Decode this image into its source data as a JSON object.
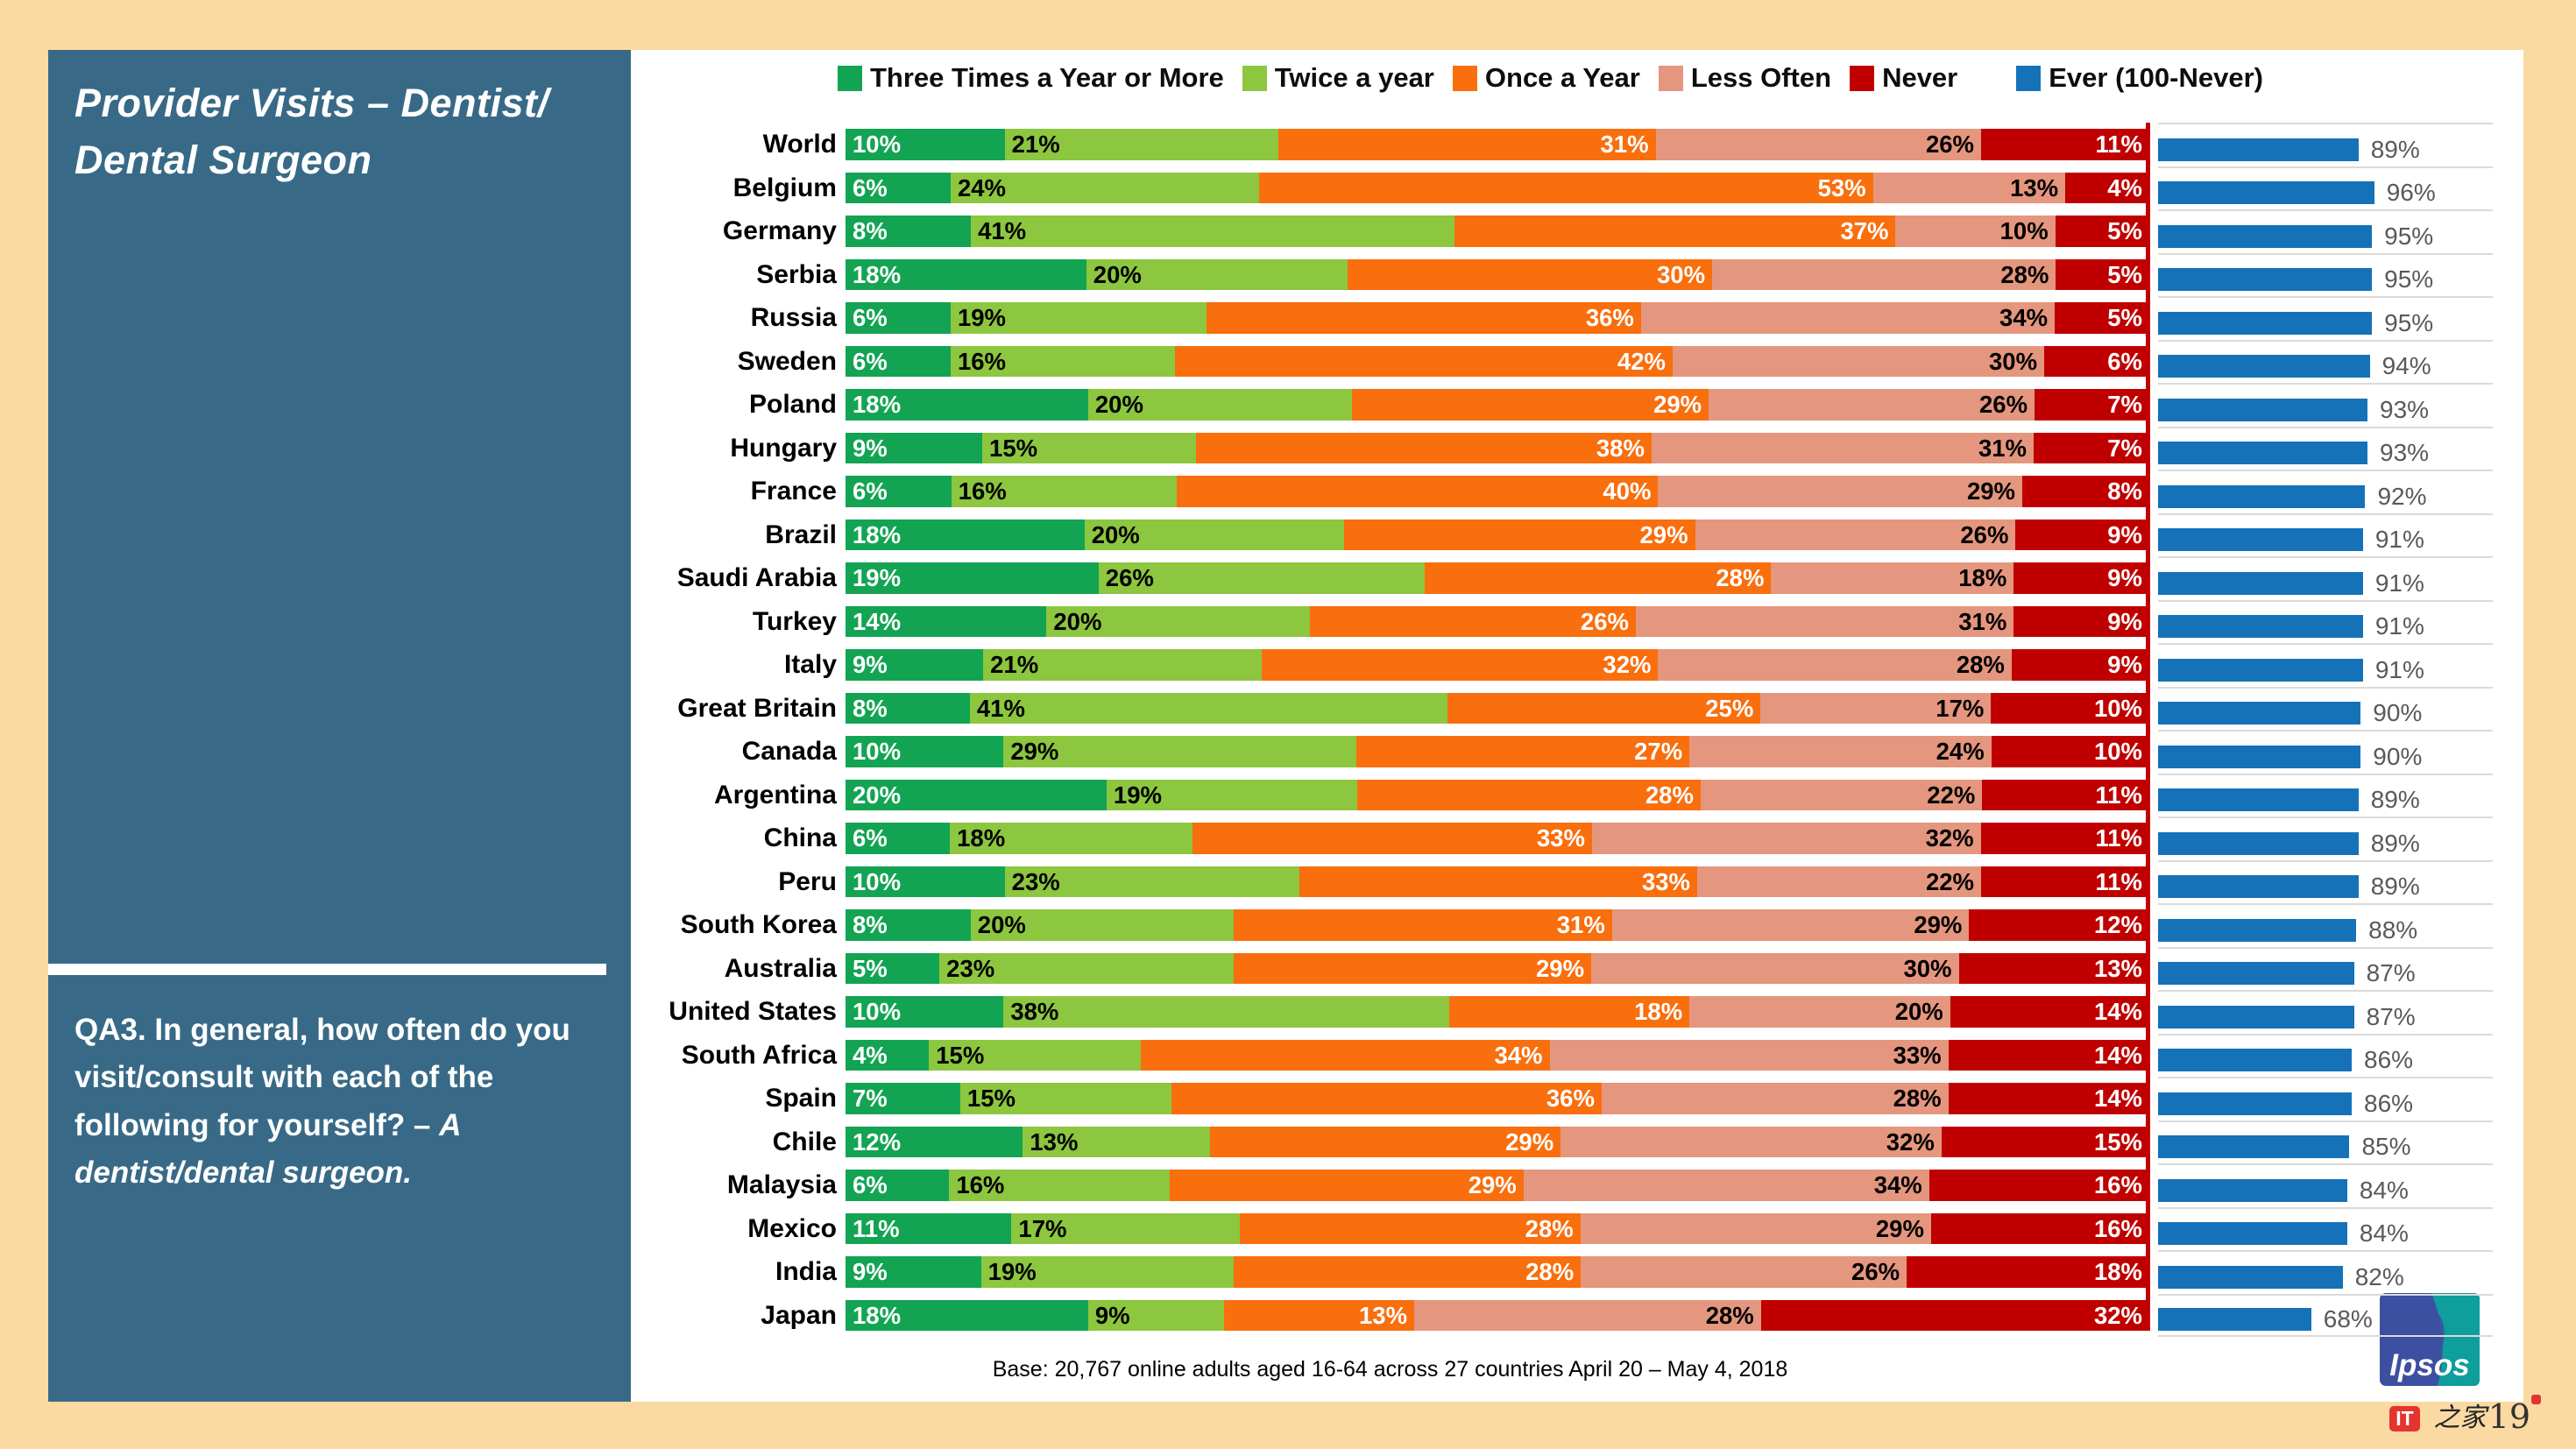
{
  "sidebar": {
    "title_line1": "Provider Visits – Dentist/",
    "title_line2": "Dental Surgeon",
    "question_prefix": "QA3. In general, how often do you visit/consult with each of the following for yourself? – ",
    "question_italic": "A dentist/dental surgeon."
  },
  "legend": {
    "position": "top",
    "items": [
      {
        "label": "Three Times a Year or More",
        "color": "#12A452"
      },
      {
        "label": "Twice a year",
        "color": "#8DC63F"
      },
      {
        "label": "Once a Year",
        "color": "#F96E0D"
      },
      {
        "label": "Less Often",
        "color": "#E5967E"
      },
      {
        "label": "Never",
        "color": "#C00000"
      },
      {
        "label": "Ever (100-Never)",
        "color": "#1572B8"
      }
    ]
  },
  "chart_data": {
    "type": "bar",
    "variant": "horizontal stacked 100% + companion horizontal bar (Ever)",
    "unit": "%",
    "series": [
      "Three Times a Year or More",
      "Twice a year",
      "Once a Year",
      "Less Often",
      "Never"
    ],
    "series_colors": [
      "#12A452",
      "#8DC63F",
      "#F96E0D",
      "#E5967E",
      "#C00000"
    ],
    "ever_series": {
      "name": "Ever (100-Never)",
      "color": "#1572B8",
      "max": 100
    },
    "grid": "row separator lines on Ever chart only",
    "rows": [
      {
        "country": "World",
        "values": [
          10,
          21,
          31,
          26,
          11
        ],
        "ever": 89
      },
      {
        "country": "Belgium",
        "values": [
          6,
          24,
          53,
          13,
          4
        ],
        "ever": 96
      },
      {
        "country": "Germany",
        "values": [
          8,
          41,
          37,
          10,
          5
        ],
        "ever": 95
      },
      {
        "country": "Serbia",
        "values": [
          18,
          20,
          30,
          28,
          5
        ],
        "ever": 95
      },
      {
        "country": "Russia",
        "values": [
          6,
          19,
          36,
          34,
          5
        ],
        "ever": 95
      },
      {
        "country": "Sweden",
        "values": [
          6,
          16,
          42,
          30,
          6
        ],
        "ever": 94
      },
      {
        "country": "Poland",
        "values": [
          18,
          20,
          29,
          26,
          7
        ],
        "ever": 93
      },
      {
        "country": "Hungary",
        "values": [
          9,
          15,
          38,
          31,
          7
        ],
        "ever": 93
      },
      {
        "country": "France",
        "values": [
          6,
          16,
          40,
          29,
          8
        ],
        "ever": 92
      },
      {
        "country": "Brazil",
        "values": [
          18,
          20,
          29,
          26,
          9
        ],
        "ever": 91
      },
      {
        "country": "Saudi Arabia",
        "values": [
          19,
          26,
          28,
          18,
          9
        ],
        "ever": 91
      },
      {
        "country": "Turkey",
        "values": [
          14,
          20,
          26,
          31,
          9
        ],
        "ever": 91
      },
      {
        "country": "Italy",
        "values": [
          9,
          21,
          32,
          28,
          9
        ],
        "ever": 91
      },
      {
        "country": "Great Britain",
        "values": [
          8,
          41,
          25,
          17,
          10
        ],
        "ever": 90
      },
      {
        "country": "Canada",
        "values": [
          10,
          29,
          27,
          24,
          10
        ],
        "ever": 90
      },
      {
        "country": "Argentina",
        "values": [
          20,
          19,
          28,
          22,
          11
        ],
        "ever": 89
      },
      {
        "country": "China",
        "values": [
          6,
          18,
          33,
          32,
          11
        ],
        "ever": 89
      },
      {
        "country": "Peru",
        "values": [
          10,
          23,
          33,
          22,
          11
        ],
        "ever": 89
      },
      {
        "country": "South Korea",
        "values": [
          8,
          20,
          31,
          29,
          12
        ],
        "ever": 88
      },
      {
        "country": "Australia",
        "values": [
          5,
          23,
          29,
          30,
          13
        ],
        "ever": 87
      },
      {
        "country": "United States",
        "values": [
          10,
          38,
          18,
          20,
          14
        ],
        "ever": 87
      },
      {
        "country": "South Africa",
        "values": [
          4,
          15,
          34,
          33,
          14
        ],
        "ever": 86
      },
      {
        "country": "Spain",
        "values": [
          7,
          15,
          36,
          28,
          14
        ],
        "ever": 86
      },
      {
        "country": "Chile",
        "values": [
          12,
          13,
          29,
          32,
          15
        ],
        "ever": 85
      },
      {
        "country": "Malaysia",
        "values": [
          6,
          16,
          29,
          34,
          16
        ],
        "ever": 84
      },
      {
        "country": "Mexico",
        "values": [
          11,
          17,
          28,
          29,
          16
        ],
        "ever": 84
      },
      {
        "country": "India",
        "values": [
          9,
          19,
          28,
          26,
          18
        ],
        "ever": 82
      },
      {
        "country": "Japan",
        "values": [
          18,
          9,
          13,
          28,
          32
        ],
        "ever": 68
      }
    ]
  },
  "footer": {
    "base_text": "Base: 20,767 online adults aged 16-64 across 27 countries  April 20 – May 4, 2018"
  },
  "logo": {
    "text": "Ipsos",
    "blue": "#3D4FA1",
    "teal": "#0E9E9B"
  },
  "watermark": {
    "it": "IT",
    "home": "之家",
    "page_no": "19"
  }
}
